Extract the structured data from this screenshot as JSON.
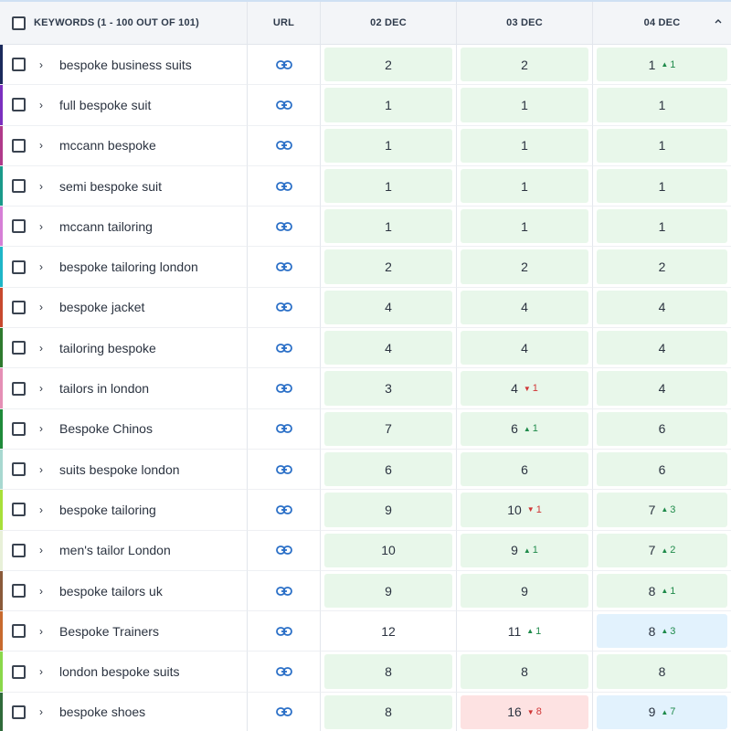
{
  "header": {
    "keywords_label": "KEYWORDS",
    "keywords_count": "(1 - 100 OUT OF 101)",
    "url_label": "URL",
    "dates": [
      "02 DEC",
      "03 DEC",
      "04 DEC"
    ]
  },
  "colors": {
    "up": "#1e8a4a",
    "down": "#d03535",
    "green_bg": "#e8f7ea",
    "red_bg": "#fde2e2",
    "blue_bg": "#e2f2fd",
    "link": "#2a6fc7"
  },
  "rows": [
    {
      "keyword": "bespoke business suits",
      "color": "#1b2a5c",
      "positions": [
        {
          "v": "2",
          "bg": "green"
        },
        {
          "v": "2",
          "bg": "green"
        },
        {
          "v": "1",
          "bg": "green",
          "dir": "up",
          "chg": "1"
        }
      ]
    },
    {
      "keyword": "full bespoke suit",
      "color": "#7b2fbf",
      "positions": [
        {
          "v": "1",
          "bg": "green"
        },
        {
          "v": "1",
          "bg": "green"
        },
        {
          "v": "1",
          "bg": "green"
        }
      ]
    },
    {
      "keyword": "mccann bespoke",
      "color": "#b03a8a",
      "positions": [
        {
          "v": "1",
          "bg": "green"
        },
        {
          "v": "1",
          "bg": "green"
        },
        {
          "v": "1",
          "bg": "green"
        }
      ]
    },
    {
      "keyword": "semi bespoke suit",
      "color": "#1a9a8a",
      "positions": [
        {
          "v": "1",
          "bg": "green"
        },
        {
          "v": "1",
          "bg": "green"
        },
        {
          "v": "1",
          "bg": "green"
        }
      ]
    },
    {
      "keyword": "mccann tailoring",
      "color": "#d67fd6",
      "positions": [
        {
          "v": "1",
          "bg": "green"
        },
        {
          "v": "1",
          "bg": "green"
        },
        {
          "v": "1",
          "bg": "green"
        }
      ]
    },
    {
      "keyword": "bespoke tailoring london",
      "color": "#1fb6c8",
      "positions": [
        {
          "v": "2",
          "bg": "green"
        },
        {
          "v": "2",
          "bg": "green"
        },
        {
          "v": "2",
          "bg": "green"
        }
      ]
    },
    {
      "keyword": "bespoke jacket",
      "color": "#c8492e",
      "positions": [
        {
          "v": "4",
          "bg": "green"
        },
        {
          "v": "4",
          "bg": "green"
        },
        {
          "v": "4",
          "bg": "green"
        }
      ]
    },
    {
      "keyword": "tailoring bespoke",
      "color": "#2e7a2e",
      "positions": [
        {
          "v": "4",
          "bg": "green"
        },
        {
          "v": "4",
          "bg": "green"
        },
        {
          "v": "4",
          "bg": "green"
        }
      ]
    },
    {
      "keyword": "tailors in london",
      "color": "#e58fb5",
      "positions": [
        {
          "v": "3",
          "bg": "green"
        },
        {
          "v": "4",
          "bg": "green",
          "dir": "down",
          "chg": "1"
        },
        {
          "v": "4",
          "bg": "green"
        }
      ]
    },
    {
      "keyword": "Bespoke Chinos",
      "color": "#1f8a3a",
      "positions": [
        {
          "v": "7",
          "bg": "green"
        },
        {
          "v": "6",
          "bg": "green",
          "dir": "up",
          "chg": "1"
        },
        {
          "v": "6",
          "bg": "green"
        }
      ]
    },
    {
      "keyword": "suits bespoke london",
      "color": "#a8d8d0",
      "positions": [
        {
          "v": "6",
          "bg": "green"
        },
        {
          "v": "6",
          "bg": "green"
        },
        {
          "v": "6",
          "bg": "green"
        }
      ]
    },
    {
      "keyword": "bespoke tailoring",
      "color": "#a8e03a",
      "positions": [
        {
          "v": "9",
          "bg": "green"
        },
        {
          "v": "10",
          "bg": "green",
          "dir": "down",
          "chg": "1"
        },
        {
          "v": "7",
          "bg": "green",
          "dir": "up",
          "chg": "3"
        }
      ]
    },
    {
      "keyword": "men's tailor London",
      "color": "#e8f0d8",
      "positions": [
        {
          "v": "10",
          "bg": "green"
        },
        {
          "v": "9",
          "bg": "green",
          "dir": "up",
          "chg": "1"
        },
        {
          "v": "7",
          "bg": "green",
          "dir": "up",
          "chg": "2"
        }
      ]
    },
    {
      "keyword": "bespoke tailors uk",
      "color": "#8a5a3a",
      "positions": [
        {
          "v": "9",
          "bg": "green"
        },
        {
          "v": "9",
          "bg": "green"
        },
        {
          "v": "8",
          "bg": "green",
          "dir": "up",
          "chg": "1"
        }
      ]
    },
    {
      "keyword": "Bespoke Trainers",
      "color": "#c86a2e",
      "positions": [
        {
          "v": "12",
          "bg": "none"
        },
        {
          "v": "11",
          "bg": "none",
          "dir": "up",
          "chg": "1"
        },
        {
          "v": "8",
          "bg": "blue",
          "dir": "up",
          "chg": "3"
        }
      ]
    },
    {
      "keyword": "london bespoke suits",
      "color": "#8ad84a",
      "positions": [
        {
          "v": "8",
          "bg": "green"
        },
        {
          "v": "8",
          "bg": "green"
        },
        {
          "v": "8",
          "bg": "green"
        }
      ]
    },
    {
      "keyword": "bespoke shoes",
      "color": "#2f6a3a",
      "positions": [
        {
          "v": "8",
          "bg": "green"
        },
        {
          "v": "16",
          "bg": "red",
          "dir": "down",
          "chg": "8"
        },
        {
          "v": "9",
          "bg": "blue",
          "dir": "up",
          "chg": "7"
        }
      ]
    }
  ]
}
